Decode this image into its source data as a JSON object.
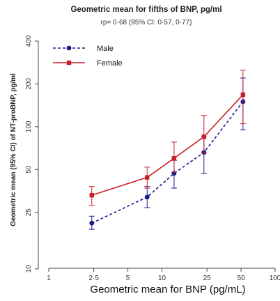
{
  "chart_data": {
    "type": "line",
    "title": "Geometric mean for fifths of BNP, pg/ml",
    "subtitle": "rp= 0·68 (95% CI: 0·57, 0·77)",
    "xlabel": "Geometric mean for BNP (pg/mL)",
    "ylabel": "Geometric mean (95% CI) of NT-proBNP, pg/ml",
    "x_scale": "log",
    "y_scale": "log",
    "xlim": [
      1,
      100
    ],
    "ylim": [
      10,
      400
    ],
    "x_ticks": [
      {
        "value": 1,
        "label": "1"
      },
      {
        "value": 2.5,
        "label": "2·5"
      },
      {
        "value": 5,
        "label": "5"
      },
      {
        "value": 10,
        "label": "10"
      },
      {
        "value": 25,
        "label": "25"
      },
      {
        "value": 50,
        "label": "50"
      },
      {
        "value": 100,
        "label": "100"
      }
    ],
    "y_ticks": [
      {
        "value": 10,
        "label": "10"
      },
      {
        "value": 25,
        "label": "25"
      },
      {
        "value": 50,
        "label": "50"
      },
      {
        "value": 100,
        "label": "100"
      },
      {
        "value": 200,
        "label": "200"
      },
      {
        "value": 400,
        "label": "400"
      }
    ],
    "legend_position": "top-left",
    "grid": false,
    "series": [
      {
        "name": "Male",
        "color": "#1a1a8c",
        "line_style": "dashed",
        "marker": "circle",
        "x": [
          2.4,
          7.4,
          12.8,
          23.5,
          52
        ],
        "y": [
          21,
          32,
          47,
          66,
          150
        ],
        "ci_low": [
          19,
          27,
          37,
          47,
          95
        ],
        "ci_high": [
          23.5,
          38,
          58,
          85,
          220
        ]
      },
      {
        "name": "Female",
        "color": "#c8202a",
        "line_style": "solid",
        "marker": "square",
        "x": [
          2.4,
          7.4,
          12.8,
          23.5,
          52
        ],
        "y": [
          33,
          44,
          60,
          85,
          168
        ],
        "ci_low": [
          28,
          37,
          48,
          65,
          105
        ],
        "ci_high": [
          38,
          52,
          78,
          120,
          250
        ]
      }
    ]
  }
}
